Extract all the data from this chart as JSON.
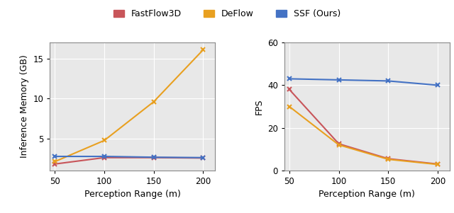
{
  "x": [
    50,
    100,
    150,
    200
  ],
  "memory_fastflow3d": [
    1.8,
    2.6,
    2.6,
    2.55
  ],
  "memory_deflow": [
    2.1,
    4.75,
    9.6,
    16.1
  ],
  "memory_ssf": [
    2.75,
    2.75,
    2.65,
    2.6
  ],
  "fps_fastflow3d": [
    38,
    12.5,
    5.5,
    3.0
  ],
  "fps_deflow": [
    30,
    12,
    5.2,
    2.8
  ],
  "fps_ssf": [
    43,
    42.5,
    42,
    40
  ],
  "color_fastflow3d": "#c8555a",
  "color_deflow": "#e8a020",
  "color_ssf": "#4472c4",
  "legend_labels": [
    "FastFlow3D",
    "DeFlow",
    "SSF (Ours)"
  ],
  "xlabel": "Perception Range (m)",
  "ylabel_left": "Inference Memory (GB)",
  "ylabel_right": "FPS",
  "ylim_left": [
    1,
    17
  ],
  "ylim_right": [
    0,
    60
  ],
  "yticks_left": [
    5,
    10,
    15
  ],
  "yticks_right": [
    0,
    20,
    40,
    60
  ],
  "xticks": [
    50,
    100,
    150,
    200
  ],
  "background_color": "#e8e8e8",
  "marker": "x",
  "linewidth": 1.5,
  "markersize": 5,
  "markeredgewidth": 1.5,
  "legend_fontsize": 9,
  "axis_label_fontsize": 9,
  "tick_fontsize": 8.5,
  "grid_color": "#ffffff",
  "grid_linewidth": 0.8,
  "spine_color": "#888888",
  "spine_linewidth": 0.8
}
